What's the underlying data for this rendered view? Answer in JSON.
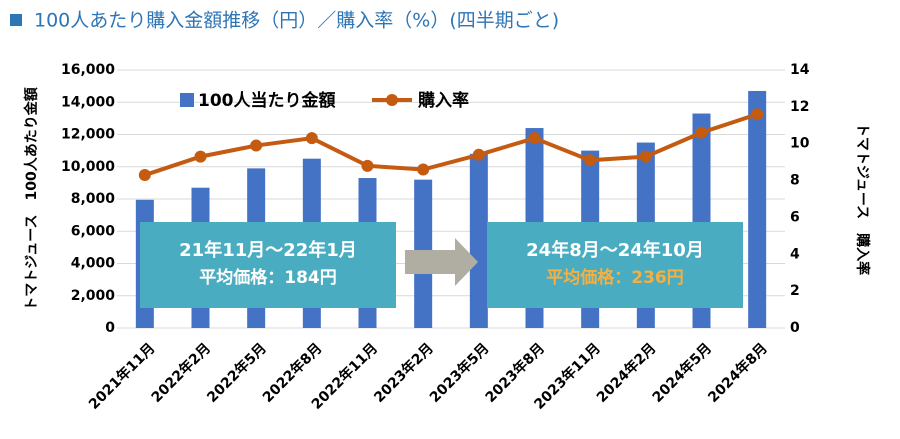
{
  "chart_data": {
    "type": "bar-line",
    "title": "100人あたり購入金額推移（円）／購入率（%）(四半期ごと)",
    "categories": [
      "2021年11月",
      "2022年2月",
      "2022年5月",
      "2022年8月",
      "2022年11月",
      "2023年2月",
      "2023年5月",
      "2023年8月",
      "2023年11月",
      "2024年2月",
      "2024年5月",
      "2024年8月"
    ],
    "series": [
      {
        "name": "100人当たり金額",
        "type": "bar",
        "color": "#4472c4",
        "values": [
          7950,
          8700,
          9900,
          10500,
          9300,
          9200,
          10800,
          12400,
          11000,
          11500,
          13300,
          14700
        ]
      },
      {
        "name": "購入率",
        "type": "line",
        "axis": "y2",
        "color": "#c55a11",
        "values": [
          8.3,
          9.3,
          9.9,
          10.3,
          8.8,
          8.6,
          9.4,
          10.3,
          9.1,
          9.3,
          10.6,
          11.6
        ]
      }
    ],
    "y_label": "トマトジュース　100人あたり金額",
    "y2_label": "トマトジュース　購入率",
    "ylim": [
      0,
      16000
    ],
    "yticks": [
      0,
      {
        "value": 2000,
        "label": "2,000"
      },
      {
        "value": 4000,
        "label": "4,000"
      },
      {
        "value": 6000,
        "label": "6,000"
      },
      {
        "value": 8000,
        "label": "8,000"
      },
      {
        "value": 10000,
        "label": "10,000"
      },
      {
        "value": 12000,
        "label": "12,000"
      },
      {
        "value": 14000,
        "label": "14,000"
      },
      {
        "value": 16000,
        "label": "16,000"
      }
    ],
    "y2lim": [
      0,
      14
    ],
    "y2ticks": [
      0,
      2,
      4,
      6,
      8,
      10,
      12,
      14
    ],
    "grid": true,
    "annotations": [
      {
        "line1": "21年11月～22年1月",
        "line2": "平均価格：184円"
      },
      {
        "line1": "24年8月～24年10月",
        "line2": "平均価格：236円"
      }
    ]
  }
}
